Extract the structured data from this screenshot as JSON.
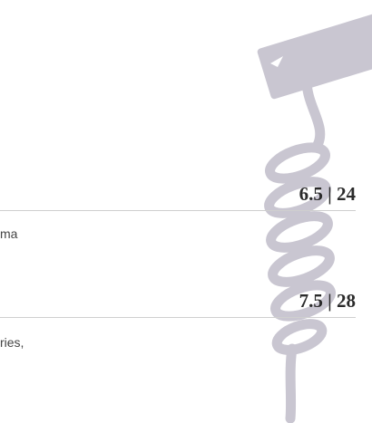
{
  "items": [
    {
      "price": "6.5 | 24",
      "description": "ma"
    },
    {
      "price": "7.5 | 28",
      "description": "ries,"
    }
  ]
}
